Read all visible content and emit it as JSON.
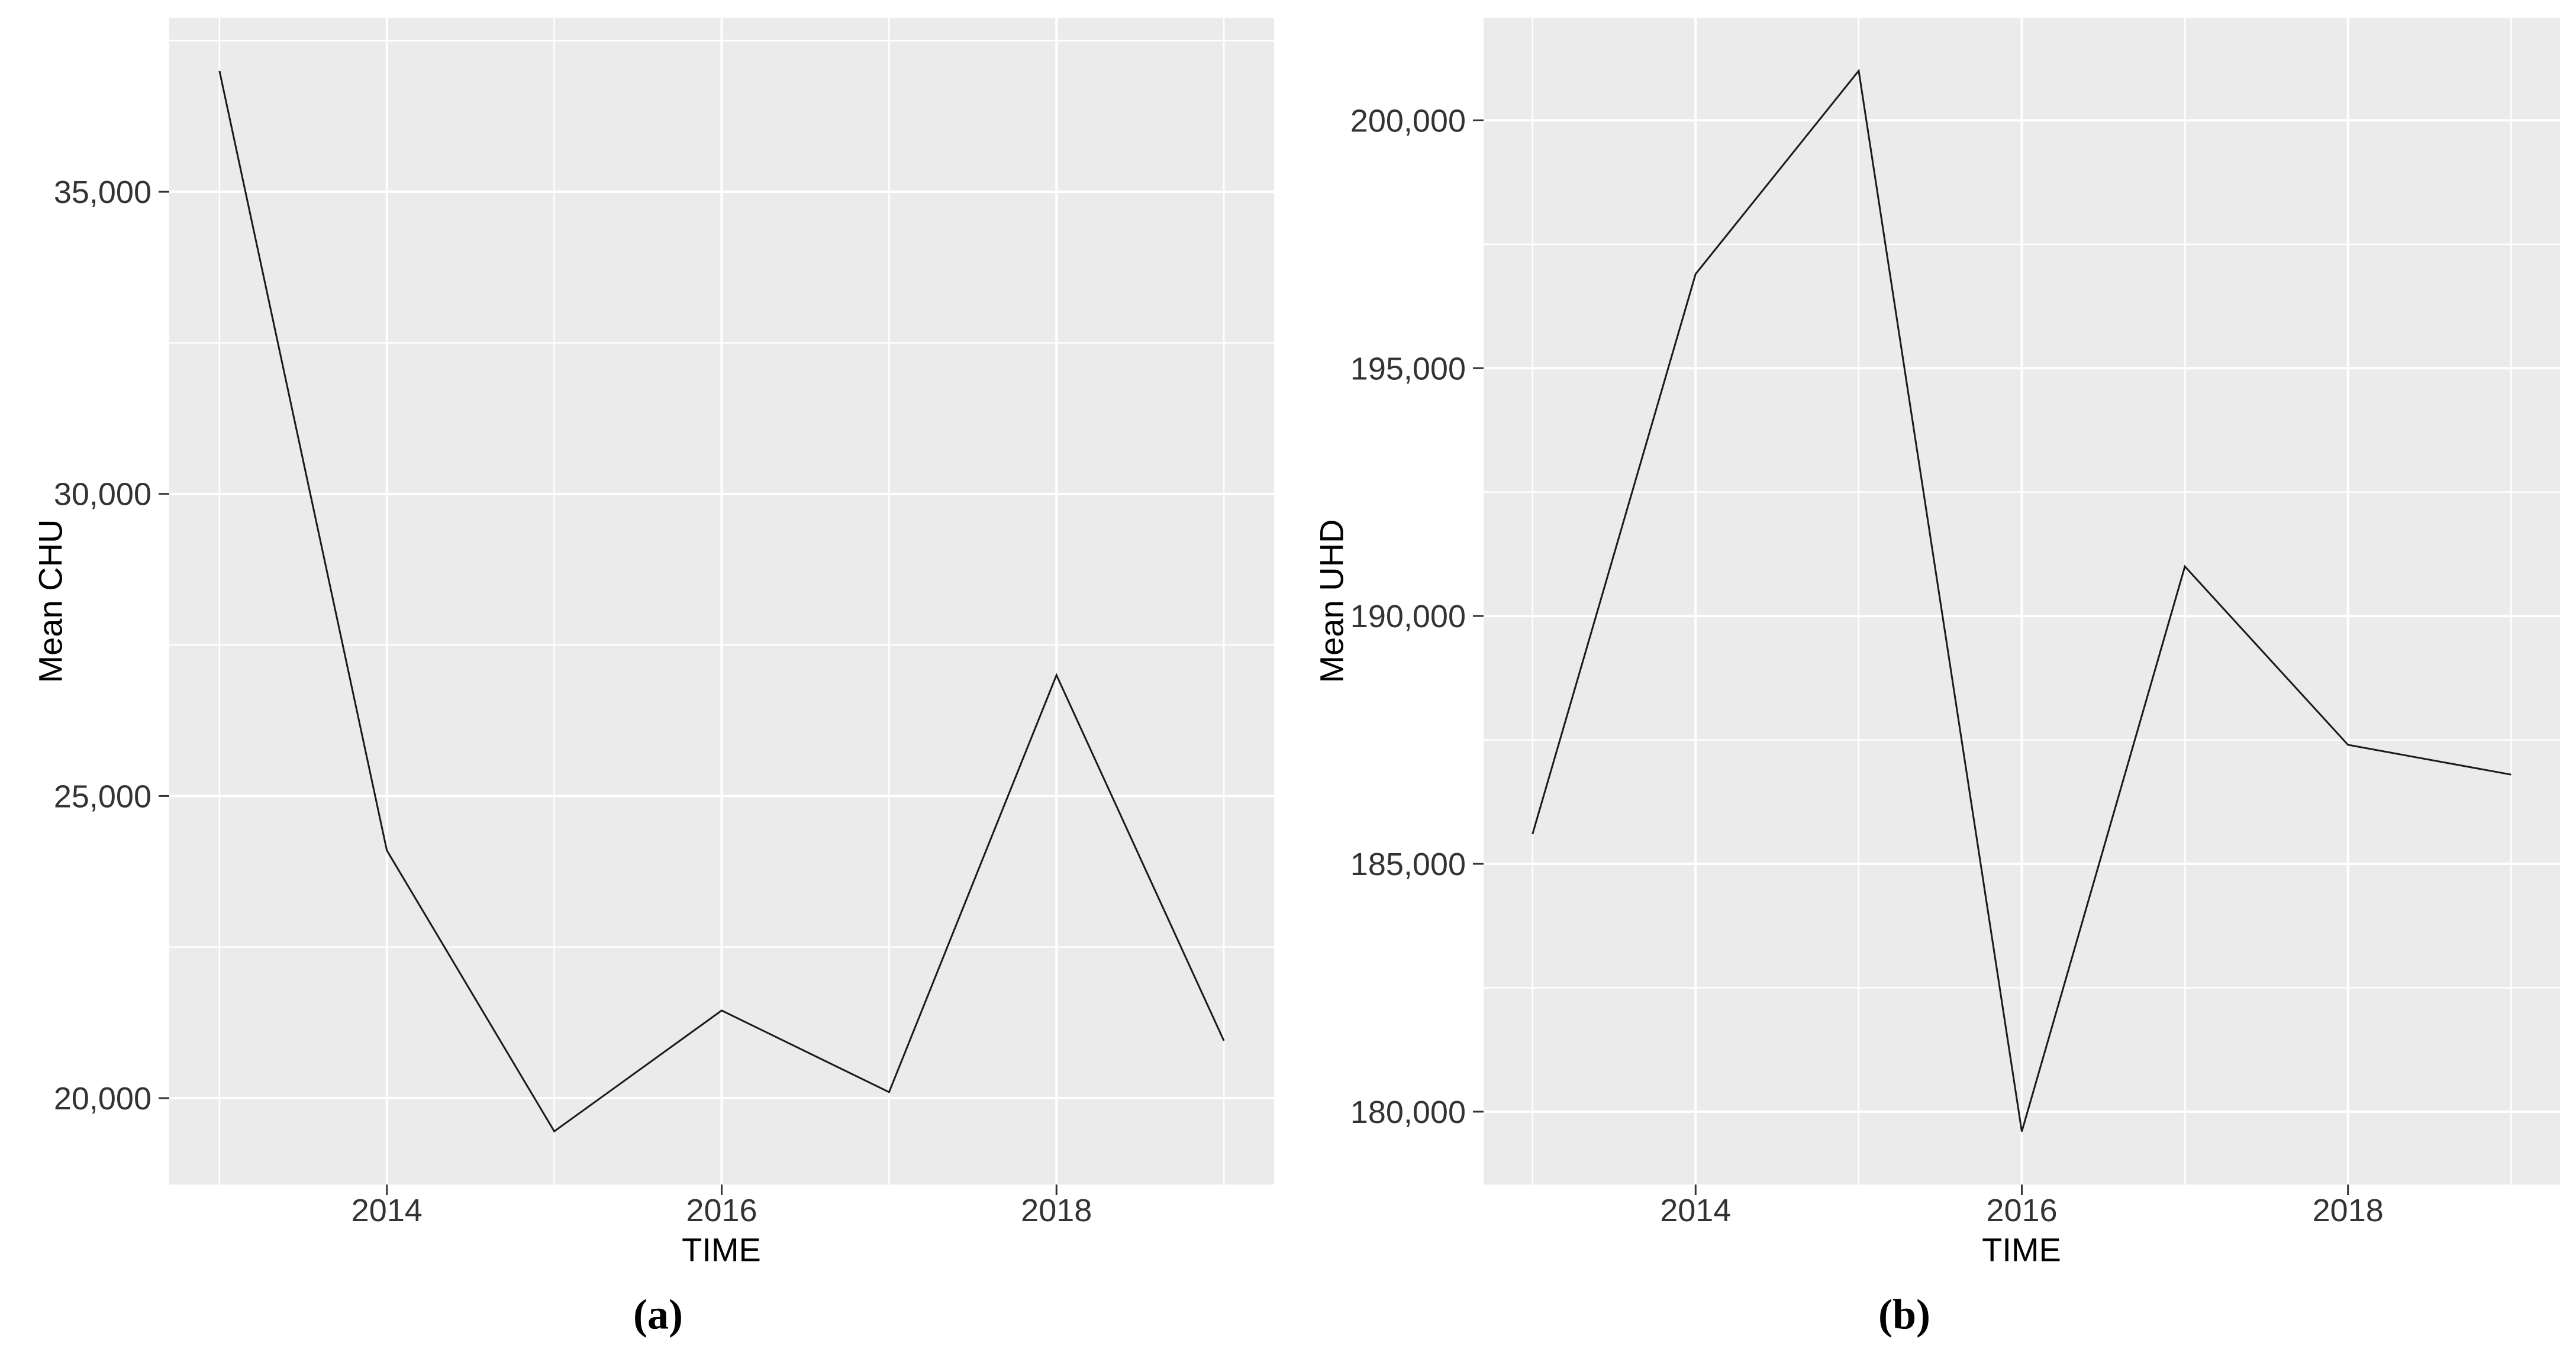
{
  "page": {
    "background": "#FFFFFF"
  },
  "chart_data": [
    {
      "type": "line",
      "panel": "a",
      "caption": "(a)",
      "title": "",
      "xlabel": "TIME",
      "ylabel": "Mean CHU",
      "legend": "none",
      "grid": "major+minor",
      "x": [
        2013,
        2014,
        2015,
        2016,
        2017,
        2018,
        2019
      ],
      "values": [
        37000,
        24100,
        19450,
        21450,
        20100,
        27000,
        20950
      ],
      "xlim": [
        2012.7,
        2019.3
      ],
      "ylim": [
        18570,
        37880
      ],
      "xticks_major": [
        2014,
        2016,
        2018
      ],
      "xtick_labels": [
        "2014",
        "2016",
        "2018"
      ],
      "xticks_minor": [
        2013,
        2015,
        2017,
        2019
      ],
      "yticks_major": [
        20000,
        25000,
        30000,
        35000
      ],
      "ytick_labels": [
        "20,000",
        "25,000",
        "30,000",
        "35,000"
      ],
      "yticks_minor": [
        22500,
        27500,
        32500,
        37500
      ],
      "colors": {
        "panel_bg": "#EBEBEB",
        "grid": "#FFFFFF",
        "line": "#1A1A1A",
        "tick": "#333333",
        "tick_label": "#333333",
        "axis_title": "#000000"
      }
    },
    {
      "type": "line",
      "panel": "b",
      "caption": "(b)",
      "title": "",
      "xlabel": "TIME",
      "ylabel": "Mean UHD",
      "legend": "none",
      "grid": "major+minor",
      "x": [
        2013,
        2014,
        2015,
        2016,
        2017,
        2018,
        2019
      ],
      "values": [
        185600,
        196900,
        201000,
        179600,
        191000,
        187400,
        186800
      ],
      "xlim": [
        2012.7,
        2019.3
      ],
      "ylim": [
        178530,
        202070
      ],
      "xticks_major": [
        2014,
        2016,
        2018
      ],
      "xtick_labels": [
        "2014",
        "2016",
        "2018"
      ],
      "xticks_minor": [
        2013,
        2015,
        2017,
        2019
      ],
      "yticks_major": [
        180000,
        185000,
        190000,
        195000,
        200000
      ],
      "ytick_labels": [
        "180,000",
        "185,000",
        "190,000",
        "195,000",
        "200,000"
      ],
      "yticks_minor": [
        182500,
        187500,
        192500,
        197500
      ],
      "colors": {
        "panel_bg": "#EBEBEB",
        "grid": "#FFFFFF",
        "line": "#1A1A1A",
        "tick": "#333333",
        "tick_label": "#333333",
        "axis_title": "#000000"
      }
    }
  ]
}
